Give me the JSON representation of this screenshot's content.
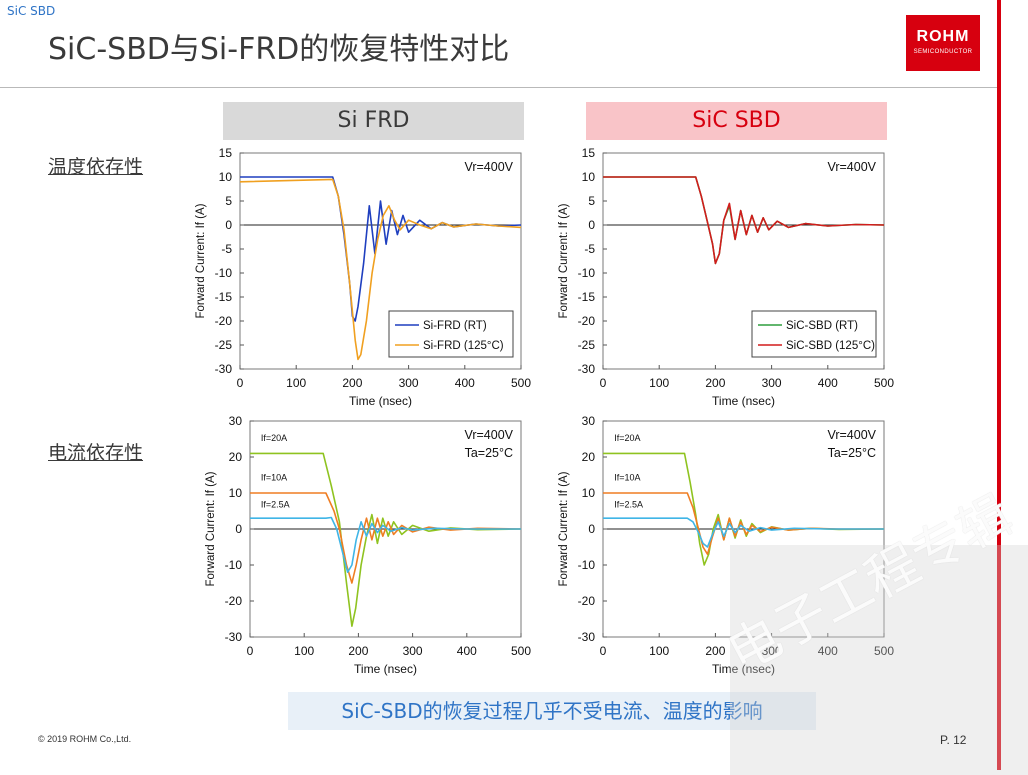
{
  "header": {
    "tag": "SiC SBD",
    "title": "SiC-SBD与Si-FRD的恢复特性对比",
    "logo_main": "ROHM",
    "logo_sub": "SEMICONDUCTOR"
  },
  "columns": {
    "left": "Si FRD",
    "right": "SiC SBD"
  },
  "rows": {
    "top": "温度依存性",
    "bottom": "电流依存性"
  },
  "footer": {
    "copyright": "© 2019 ROHM Co.,Ltd.",
    "page": "P. 12",
    "conclusion": "SiC-SBD的恢复过程几乎不受电流、温度的影响"
  },
  "watermark": "电子工程专辑",
  "colors": {
    "brand_red": "#d7000f",
    "accent_blue": "#2f74c6"
  },
  "chart_data": [
    {
      "id": "frd-temp",
      "type": "line",
      "title": "",
      "xlabel": "Time (nsec)",
      "ylabel": "Forward Current: If (A)",
      "xlim": [
        0,
        500
      ],
      "ylim": [
        -30,
        15
      ],
      "xticks": [
        "0",
        "100",
        "200",
        "300",
        "400",
        "500"
      ],
      "yticks": [
        "15",
        "10",
        "5",
        "0",
        "-5",
        "-10",
        "-15",
        "-20",
        "-25",
        "-30"
      ],
      "annotations": [
        "Vr=400V"
      ],
      "legend": "bottom-right",
      "grid": false,
      "series": [
        {
          "name": "Si-FRD (RT)",
          "color": "#1f3fbf",
          "x": [
            0,
            165,
            175,
            185,
            195,
            200,
            205,
            210,
            220,
            230,
            240,
            250,
            260,
            270,
            280,
            290,
            300,
            320,
            340,
            360,
            380,
            420,
            460,
            500
          ],
          "y": [
            10,
            10,
            6,
            -2,
            -12,
            -19,
            -20,
            -17,
            -8,
            4,
            -6,
            5,
            -4,
            3,
            -2,
            2,
            -1.5,
            1,
            -0.8,
            0.5,
            -0.4,
            0.2,
            -0.2,
            0
          ]
        },
        {
          "name": "Si-FRD (125°C)",
          "color": "#f0a020",
          "x": [
            0,
            165,
            175,
            185,
            195,
            205,
            210,
            215,
            225,
            235,
            245,
            255,
            265,
            275,
            285,
            300,
            320,
            340,
            360,
            380,
            420,
            460,
            500
          ],
          "y": [
            9,
            9.5,
            6,
            -1,
            -12,
            -24,
            -28,
            -27,
            -20,
            -10,
            -3,
            2,
            4,
            1,
            -1,
            1,
            0,
            -0.8,
            0.5,
            -0.4,
            0.2,
            -0.2,
            -0.5
          ]
        }
      ]
    },
    {
      "id": "sbd-temp",
      "type": "line",
      "title": "",
      "xlabel": "Time (nsec)",
      "ylabel": "Forward Current: If (A)",
      "xlim": [
        0,
        500
      ],
      "ylim": [
        -30,
        15
      ],
      "xticks": [
        "0",
        "100",
        "200",
        "300",
        "400",
        "500"
      ],
      "yticks": [
        "15",
        "10",
        "5",
        "0",
        "-5",
        "-10",
        "-15",
        "-20",
        "-25",
        "-30"
      ],
      "annotations": [
        "Vr=400V"
      ],
      "legend": "bottom-right",
      "grid": false,
      "series": [
        {
          "name": "SiC-SBD (RT)",
          "color": "#2e9e3e",
          "x": [
            0,
            165,
            175,
            185,
            195,
            200,
            207,
            215,
            225,
            235,
            245,
            255,
            265,
            275,
            285,
            295,
            310,
            330,
            360,
            400,
            450,
            500
          ],
          "y": [
            10,
            10,
            6,
            1,
            -4,
            -8,
            -6,
            1,
            4,
            -3,
            3,
            -2,
            2,
            -1.5,
            1.5,
            -1,
            0.8,
            -0.5,
            0.3,
            -0.2,
            0.1,
            0
          ]
        },
        {
          "name": "SiC-SBD (125°C)",
          "color": "#d21c1c",
          "x": [
            0,
            165,
            175,
            185,
            195,
            200,
            207,
            215,
            225,
            235,
            245,
            255,
            265,
            275,
            285,
            295,
            310,
            330,
            360,
            400,
            450,
            500
          ],
          "y": [
            10,
            10,
            6,
            1,
            -4,
            -8,
            -6,
            1,
            4.5,
            -3,
            3,
            -2,
            2,
            -1.5,
            1.5,
            -1,
            0.8,
            -0.5,
            0.3,
            -0.2,
            0.1,
            0
          ]
        }
      ]
    },
    {
      "id": "frd-current",
      "type": "line",
      "title": "",
      "xlabel": "Time (nsec)",
      "ylabel": "Forward Current: If (A)",
      "xlim": [
        0,
        500
      ],
      "ylim": [
        -30,
        30
      ],
      "xticks": [
        "0",
        "100",
        "200",
        "300",
        "400",
        "500"
      ],
      "yticks": [
        "30",
        "20",
        "10",
        "0",
        "-10",
        "-20",
        "-30"
      ],
      "annotations": [
        "Vr=400V",
        "Ta=25°C"
      ],
      "grid": false,
      "series": [
        {
          "name": "If=20A",
          "color": "#8fc320",
          "x": [
            0,
            135,
            150,
            165,
            178,
            188,
            195,
            205,
            215,
            225,
            235,
            245,
            255,
            265,
            280,
            300,
            330,
            370,
            420,
            500
          ],
          "y": [
            21,
            21,
            12,
            2,
            -15,
            -27,
            -22,
            -10,
            -2,
            4,
            -4,
            3,
            -2,
            2,
            -1.5,
            1,
            -0.6,
            0.3,
            -0.2,
            0
          ]
        },
        {
          "name": "If=10A",
          "color": "#ef7d22",
          "x": [
            0,
            140,
            155,
            165,
            178,
            188,
            196,
            205,
            215,
            225,
            235,
            245,
            255,
            265,
            280,
            300,
            330,
            370,
            420,
            500
          ],
          "y": [
            10,
            10,
            5,
            0,
            -10,
            -15,
            -10,
            -3,
            3,
            -3,
            3,
            -2,
            2,
            -1.5,
            1,
            -0.8,
            0.5,
            -0.3,
            0.2,
            0
          ]
        },
        {
          "name": "If=2.5A",
          "color": "#3fb5e6",
          "x": [
            0,
            140,
            150,
            160,
            170,
            180,
            188,
            196,
            205,
            215,
            225,
            235,
            245,
            260,
            280,
            300,
            340,
            400,
            500
          ],
          "y": [
            3,
            3,
            3.2,
            0,
            -6,
            -12,
            -10,
            -3,
            2,
            -2,
            1.5,
            -1,
            1,
            -0.6,
            0.4,
            -0.3,
            0.2,
            0,
            0
          ]
        }
      ]
    },
    {
      "id": "sbd-current",
      "type": "line",
      "title": "",
      "xlabel": "Time (nsec)",
      "ylabel": "Forward Current: If (A)",
      "xlim": [
        0,
        500
      ],
      "ylim": [
        -30,
        30
      ],
      "xticks": [
        "0",
        "100",
        "200",
        "300",
        "400",
        "500"
      ],
      "yticks": [
        "30",
        "20",
        "10",
        "0",
        "-10",
        "-20",
        "-30"
      ],
      "annotations": [
        "Vr=400V",
        "Ta=25°C"
      ],
      "grid": false,
      "series": [
        {
          "name": "If=20A",
          "color": "#8fc320",
          "x": [
            0,
            145,
            155,
            165,
            172,
            180,
            188,
            196,
            205,
            215,
            225,
            235,
            245,
            255,
            265,
            280,
            300,
            330,
            370,
            420,
            500
          ],
          "y": [
            21,
            21,
            13,
            4,
            -4,
            -10,
            -7,
            0,
            4,
            -3,
            3,
            -2.5,
            2.5,
            -2,
            1.5,
            -1,
            0.6,
            -0.3,
            0.2,
            -0.1,
            0
          ]
        },
        {
          "name": "If=10A",
          "color": "#ef7d22",
          "x": [
            0,
            150,
            160,
            170,
            178,
            186,
            195,
            205,
            215,
            225,
            235,
            245,
            255,
            265,
            280,
            300,
            330,
            370,
            420,
            500
          ],
          "y": [
            10,
            10,
            6,
            0,
            -5,
            -7,
            -2,
            3,
            -3,
            3,
            -2,
            2,
            -1.5,
            1,
            -0.7,
            0.5,
            -0.3,
            0.2,
            0,
            0
          ]
        },
        {
          "name": "If=2.5A",
          "color": "#3fb5e6",
          "x": [
            0,
            150,
            160,
            170,
            178,
            186,
            196,
            205,
            215,
            225,
            235,
            245,
            260,
            280,
            300,
            340,
            400,
            500
          ],
          "y": [
            3,
            3,
            2,
            -1,
            -4,
            -5,
            -1,
            2,
            -2,
            1.5,
            -1,
            1,
            -0.6,
            0.4,
            -0.3,
            0.2,
            0,
            0
          ]
        }
      ]
    }
  ]
}
